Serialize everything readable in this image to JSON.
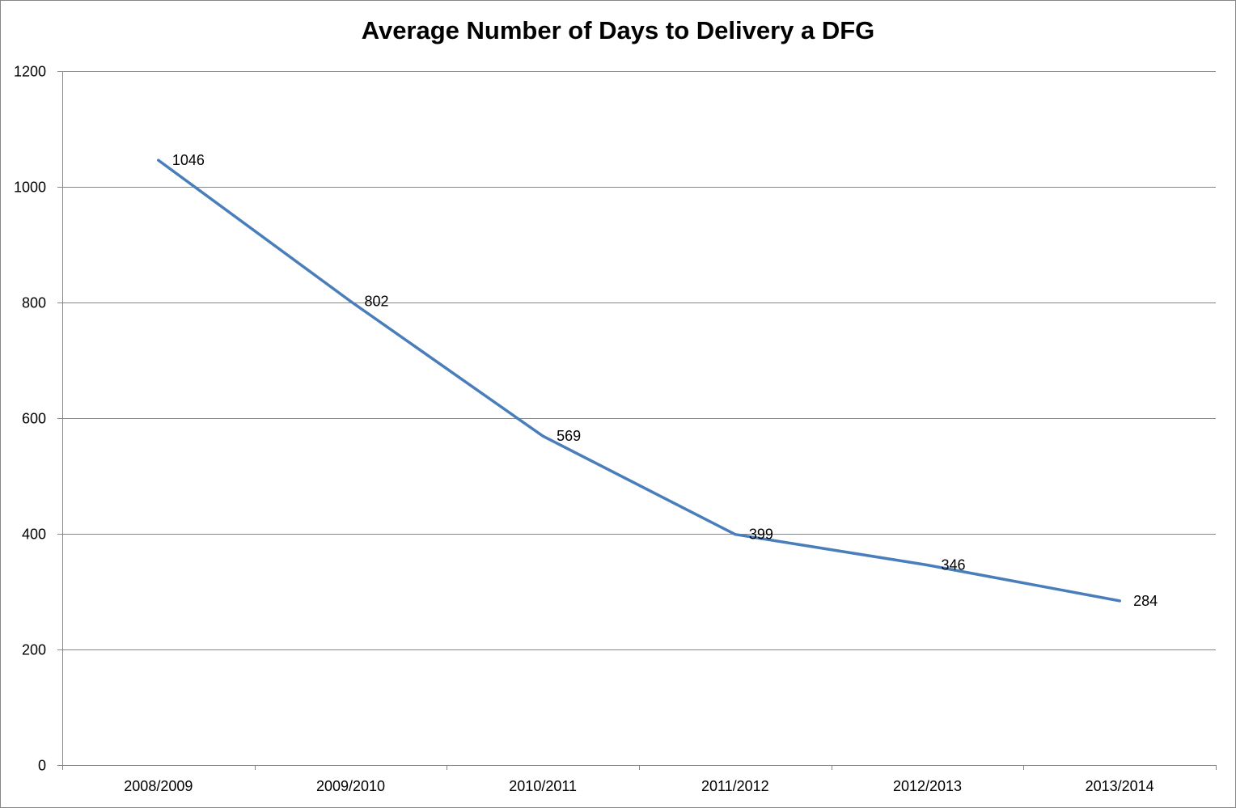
{
  "chart_data": {
    "type": "line",
    "title": "Average Number of Days to Delivery a DFG",
    "xlabel": "",
    "ylabel": "",
    "categories": [
      "2008/2009",
      "2009/2010",
      "2010/2011",
      "2011/2012",
      "2012/2013",
      "2013/2014"
    ],
    "series": [
      {
        "values": [
          1046,
          802,
          569,
          399,
          346,
          284
        ],
        "color": "#4a7ebb"
      }
    ],
    "data_labels": [
      "1046",
      "802",
      "569",
      "399",
      "346",
      "284"
    ],
    "ylim": [
      0,
      1200
    ],
    "yticks": [
      0,
      200,
      400,
      600,
      800,
      1000,
      1200
    ],
    "ytick_labels": [
      "0",
      "200",
      "400",
      "600",
      "800",
      "1000",
      "1200"
    ],
    "grid": true,
    "legend": "none",
    "colors": {
      "gridline": "#868686",
      "axis": "#868686",
      "line": "#4a7ebb"
    }
  }
}
